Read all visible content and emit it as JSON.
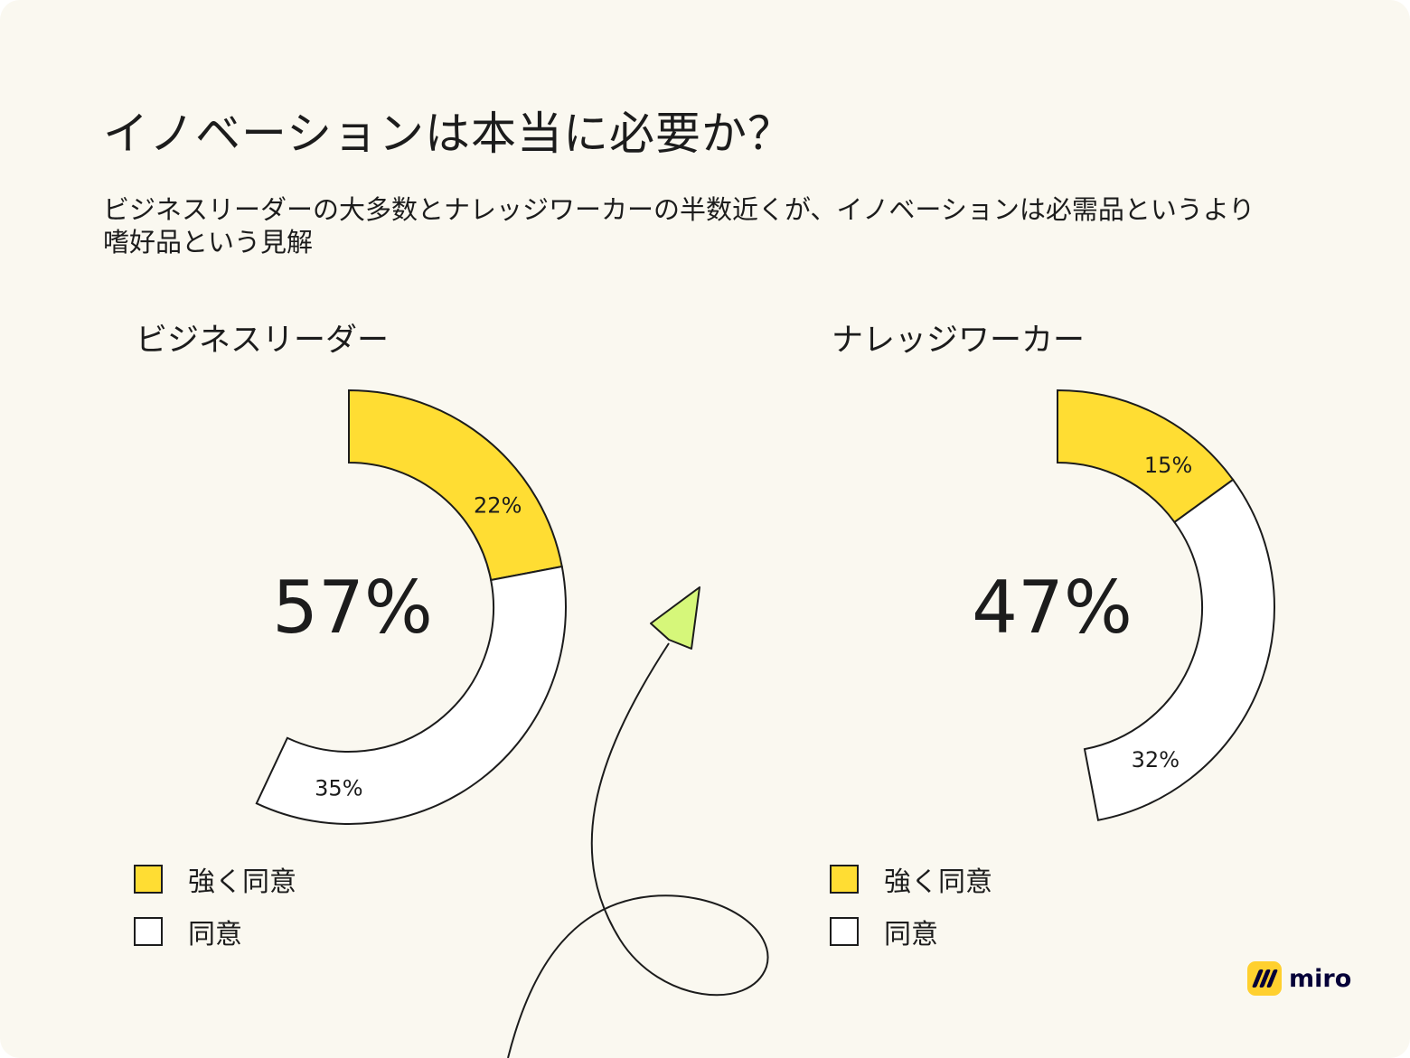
{
  "title": "イノベーションは本当に必要か？",
  "subtitle": "ビジネスリーダーの大多数とナレッジワーカーの半数近くが、イノベーションは必需品というより嗜好品という見解",
  "brand": {
    "name": "miro",
    "icon": "miro-logo-icon",
    "color": "#ffd02f"
  },
  "chart_data": [
    {
      "type": "pie",
      "title": "ビジネスリーダー",
      "total_label": "57%",
      "series": [
        {
          "name": "強く同意",
          "value": 22,
          "label": "22%",
          "color": "#ffdd33"
        },
        {
          "name": "同意",
          "value": 35,
          "label": "35%",
          "color": "#ffffff"
        }
      ],
      "legend": "bottom-left"
    },
    {
      "type": "pie",
      "title": "ナレッジワーカー",
      "total_label": "47%",
      "series": [
        {
          "name": "強く同意",
          "value": 15,
          "label": "15%",
          "color": "#ffdd33"
        },
        {
          "name": "同意",
          "value": 32,
          "label": "32%",
          "color": "#ffffff"
        }
      ],
      "legend": "bottom-left"
    }
  ],
  "decoration": {
    "arrow_icon": "paper-plane-arrow-icon",
    "arrow_color": "#d6f77a"
  }
}
